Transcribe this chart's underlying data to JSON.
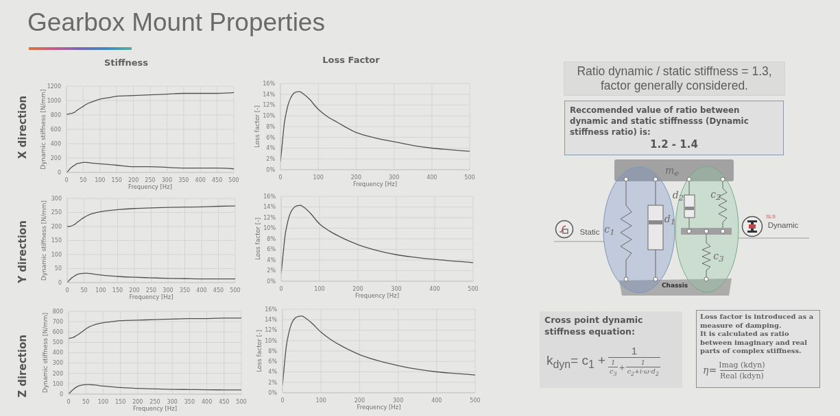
{
  "chart_data": [
    {
      "type": "other",
      "title": "Gearbox Mount Properties"
    },
    {
      "type": "line",
      "title": "Stiffness",
      "xlabel": "Frequency [Hz]",
      "ylabel": "Dynamic stiffness [N/mm]",
      "annotations": [
        "X direction"
      ],
      "x": [
        0,
        5,
        10,
        15,
        20,
        25,
        30,
        40,
        50,
        60,
        75,
        100,
        125,
        150,
        200,
        250,
        300,
        350,
        400,
        450,
        500
      ],
      "series": [
        {
          "color": "#505050",
          "values": [
            810,
            810,
            820,
            820,
            830,
            840,
            860,
            890,
            920,
            950,
            980,
            1020,
            1040,
            1060,
            1070,
            1080,
            1090,
            1100,
            1100,
            1100,
            1110
          ]
        },
        {
          "color": "#505050",
          "values": [
            0,
            20,
            50,
            70,
            90,
            100,
            120,
            130,
            140,
            140,
            130,
            120,
            110,
            100,
            80,
            80,
            70,
            60,
            60,
            60,
            50
          ]
        }
      ],
      "xlim": [
        0,
        500
      ],
      "ylim": [
        0,
        1200
      ],
      "xticks": [
        0,
        50,
        100,
        150,
        200,
        250,
        300,
        350,
        400,
        450,
        500
      ],
      "yticks": [
        0,
        200,
        400,
        600,
        800,
        1000,
        1200
      ],
      "grid": true
    },
    {
      "type": "line",
      "title": "Loss Factor",
      "xlabel": "Frequency [Hz]",
      "ylabel": "Loss factor [-]",
      "x": [
        0,
        5,
        10,
        15,
        20,
        25,
        30,
        40,
        50,
        60,
        75,
        100,
        125,
        150,
        200,
        250,
        300,
        350,
        400,
        450,
        500
      ],
      "series": [
        {
          "color": "#505050",
          "values": [
            1.5,
            5,
            8.5,
            10.5,
            12,
            13,
            13.7,
            14.4,
            14.5,
            14.1,
            13.2,
            11.2,
            9.8,
            8.8,
            6.9,
            5.9,
            5.2,
            4.5,
            4.0,
            3.7,
            3.4
          ]
        }
      ],
      "xlim": [
        0,
        500
      ],
      "ylim": [
        0,
        16
      ],
      "xticks": [
        0,
        100,
        200,
        300,
        400,
        500
      ],
      "yticks": [
        {
          "value": 0,
          "label": "0%"
        },
        {
          "value": 2,
          "label": "2%"
        },
        {
          "value": 4,
          "label": "4%"
        },
        {
          "value": 6,
          "label": "6%"
        },
        {
          "value": 8,
          "label": "8%"
        },
        {
          "value": 10,
          "label": "10%"
        },
        {
          "value": 12,
          "label": "12%"
        },
        {
          "value": 14,
          "label": "14%"
        },
        {
          "value": 16,
          "label": "16%"
        }
      ],
      "grid": true
    },
    {
      "type": "line",
      "xlabel": "Frequency [Hz]",
      "ylabel": "Dynamic stiffness [N/mm]",
      "annotations": [
        "Y direction"
      ],
      "x": [
        0,
        5,
        10,
        15,
        20,
        25,
        30,
        40,
        50,
        60,
        75,
        100,
        125,
        150,
        200,
        250,
        300,
        350,
        400,
        450,
        500
      ],
      "series": [
        {
          "color": "#505050",
          "values": [
            200,
            200,
            201,
            203,
            206,
            210,
            215,
            224,
            232,
            239,
            246,
            253,
            257,
            260,
            264,
            266,
            268,
            269,
            270,
            272,
            273
          ]
        },
        {
          "color": "#505050",
          "values": [
            0,
            7,
            13,
            18,
            22,
            26,
            29,
            32,
            33,
            33,
            31,
            27,
            24,
            22,
            19,
            17,
            15,
            14,
            13,
            13,
            13
          ]
        }
      ],
      "xlim": [
        0,
        500
      ],
      "ylim": [
        0,
        300
      ],
      "xticks": [
        0,
        50,
        100,
        150,
        200,
        250,
        300,
        350,
        400,
        450,
        500
      ],
      "yticks": [
        0,
        50,
        100,
        150,
        200,
        250,
        300
      ],
      "grid": true
    },
    {
      "type": "line",
      "xlabel": "Frequency [Hz]",
      "ylabel": "Loss factor [-]",
      "x": [
        0,
        5,
        10,
        15,
        20,
        25,
        30,
        40,
        50,
        60,
        75,
        100,
        125,
        150,
        200,
        250,
        300,
        350,
        400,
        450,
        500
      ],
      "series": [
        {
          "color": "#505050",
          "values": [
            1.5,
            5,
            8.5,
            10.5,
            12,
            13,
            13.6,
            14.2,
            14.3,
            13.9,
            12.9,
            10.8,
            9.5,
            8.5,
            6.9,
            5.8,
            5.0,
            4.5,
            4.1,
            3.8,
            3.5
          ]
        }
      ],
      "xlim": [
        0,
        500
      ],
      "ylim": [
        0,
        16
      ],
      "xticks": [
        0,
        100,
        200,
        300,
        400,
        500
      ],
      "yticks": [
        {
          "value": 0,
          "label": "0%"
        },
        {
          "value": 2,
          "label": "2%"
        },
        {
          "value": 4,
          "label": "4%"
        },
        {
          "value": 6,
          "label": "6%"
        },
        {
          "value": 8,
          "label": "8%"
        },
        {
          "value": 10,
          "label": "10%"
        },
        {
          "value": 12,
          "label": "12%"
        },
        {
          "value": 14,
          "label": "14%"
        },
        {
          "value": 16,
          "label": "16%"
        }
      ],
      "grid": true
    },
    {
      "type": "line",
      "xlabel": "Frequency [Hz]",
      "ylabel": "Dynamic stiffness [N/mm]",
      "annotations": [
        "Z direction"
      ],
      "x": [
        0,
        5,
        10,
        15,
        20,
        25,
        30,
        40,
        50,
        60,
        75,
        100,
        125,
        150,
        200,
        250,
        300,
        350,
        400,
        450,
        500
      ],
      "series": [
        {
          "color": "#505050",
          "values": [
            540,
            540,
            545,
            550,
            560,
            570,
            580,
            605,
            630,
            650,
            670,
            690,
            700,
            710,
            715,
            720,
            725,
            730,
            730,
            735,
            735
          ]
        },
        {
          "color": "#505050",
          "values": [
            0,
            18,
            35,
            50,
            62,
            72,
            80,
            88,
            92,
            92,
            88,
            78,
            70,
            63,
            55,
            50,
            46,
            44,
            42,
            41,
            40
          ]
        }
      ],
      "xlim": [
        0,
        500
      ],
      "ylim": [
        0,
        800
      ],
      "xticks": [
        0,
        50,
        100,
        150,
        200,
        250,
        300,
        350,
        400,
        450,
        500
      ],
      "yticks": [
        0,
        100,
        200,
        300,
        400,
        500,
        600,
        700,
        800
      ],
      "grid": true
    },
    {
      "type": "line",
      "xlabel": "Frequency [Hz]",
      "ylabel": "Loss factor [-]",
      "x": [
        0,
        5,
        10,
        15,
        20,
        25,
        30,
        40,
        50,
        60,
        75,
        100,
        125,
        150,
        200,
        250,
        300,
        350,
        400,
        450,
        500
      ],
      "series": [
        {
          "color": "#505050",
          "values": [
            1.5,
            5.5,
            9,
            11,
            12.5,
            13.5,
            14.1,
            14.6,
            14.7,
            14.3,
            13.4,
            11.6,
            10.2,
            9.1,
            7.3,
            6.1,
            5.2,
            4.5,
            4.0,
            3.7,
            3.4
          ]
        }
      ],
      "xlim": [
        0,
        500
      ],
      "ylim": [
        0,
        16
      ],
      "xticks": [
        0,
        100,
        200,
        300,
        400,
        500
      ],
      "yticks": [
        {
          "value": 0,
          "label": "0%"
        },
        {
          "value": 2,
          "label": "2%"
        },
        {
          "value": 4,
          "label": "4%"
        },
        {
          "value": 6,
          "label": "6%"
        },
        {
          "value": 8,
          "label": "8%"
        },
        {
          "value": 10,
          "label": "10%"
        },
        {
          "value": 12,
          "label": "12%"
        },
        {
          "value": 14,
          "label": "14%"
        },
        {
          "value": 16,
          "label": "16%"
        }
      ],
      "grid": true
    },
    {
      "type": "other",
      "annotations": [
        "Ratio dynamic / static stiffness = 1.3, factor generally considered."
      ]
    },
    {
      "type": "other",
      "annotations": [
        "Reccomended value of ratio between dynamic and static stiffnesss (Dynamic stiffness ratio) is:",
        "1.2 - 1.4"
      ]
    },
    {
      "type": "other",
      "annotations": [
        "m$_{e}$",
        "d$_{2}$",
        "c$_{2}$",
        "d$_{1}$",
        "c$_{1}$",
        "c$_{3}$",
        "Chassis",
        "Static",
        "SLS",
        "Dynamic"
      ]
    },
    {
      "type": "other",
      "annotations": [
        "Cross point dynamic stiffness equation:",
        "k$_{dyn}$= c$_{1}$ +",
        "1",
        "1",
        "c$_{3}$",
        "+",
        "1",
        "c$_{2}$+i·ω·d$_{2}$"
      ]
    },
    {
      "type": "other",
      "annotations": [
        "Loss factor is introduced as a measure of damping.",
        "It is calculated as ratio between imaginary and real parts of complex stiffness.",
        "η=",
        "Imag (kdyn)",
        "Real (kdyn)"
      ]
    }
  ]
}
